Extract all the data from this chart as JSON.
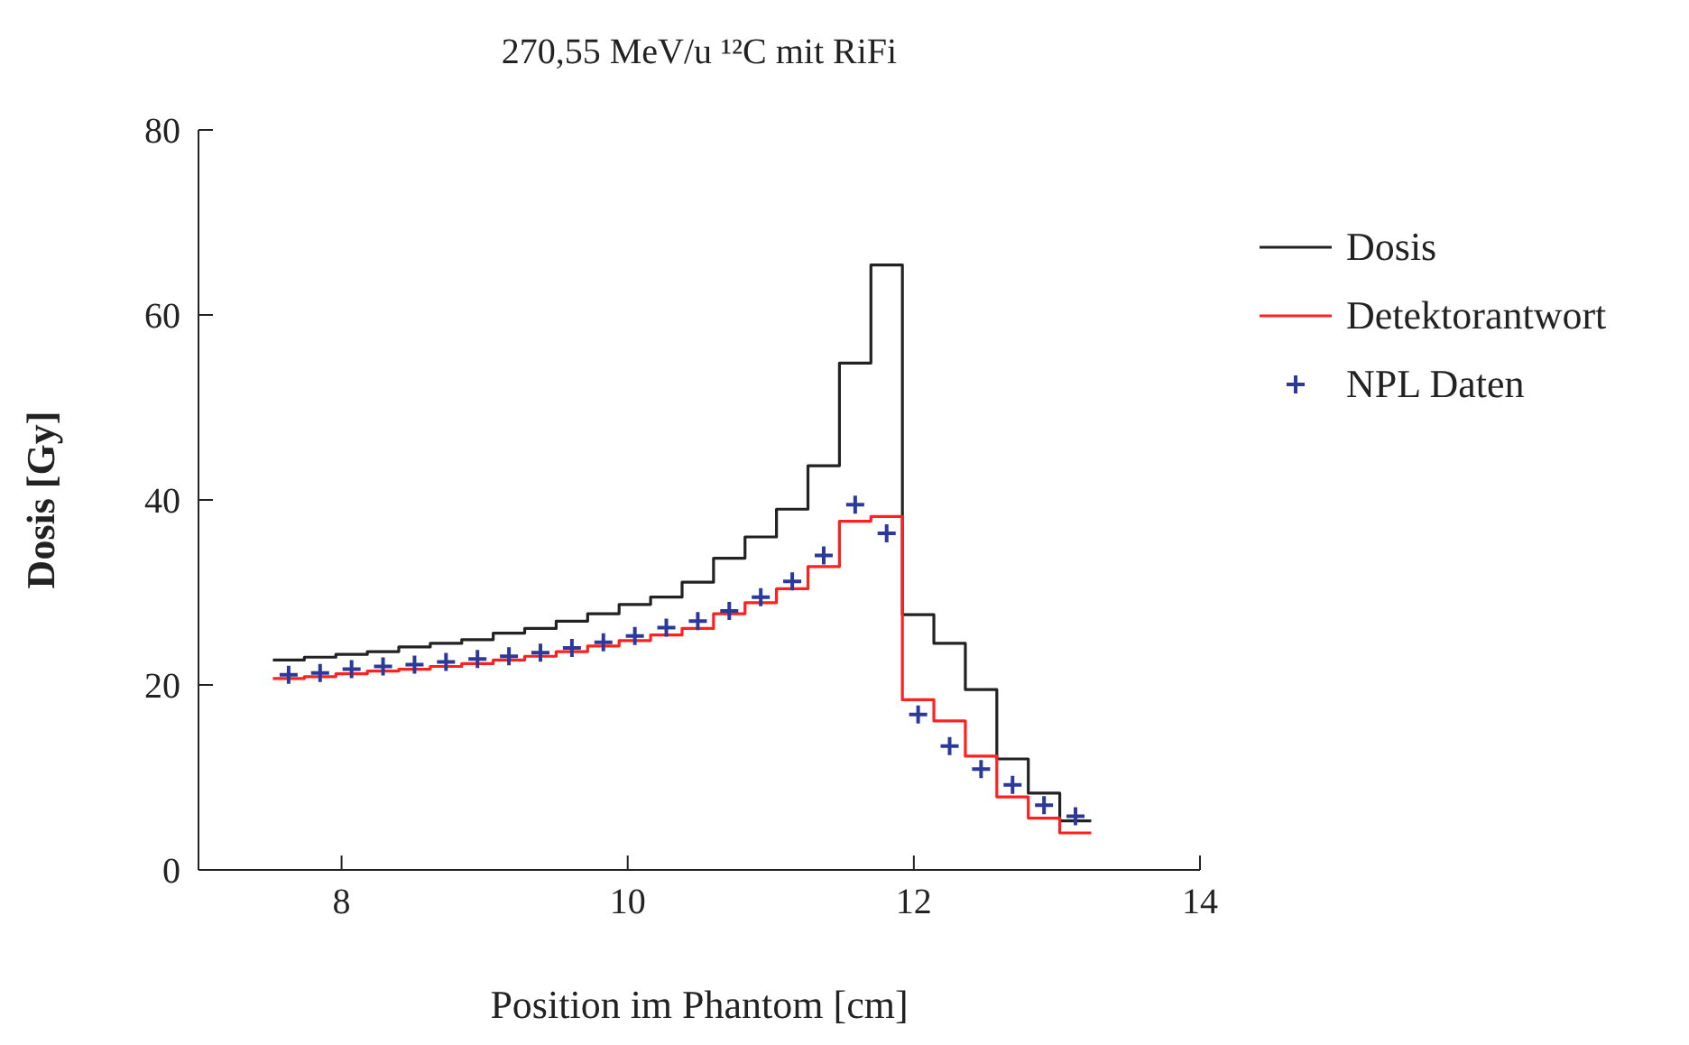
{
  "chart_data": {
    "type": "histogram",
    "title": "270,55 MeV/u ¹²C mit RiFi",
    "xlabel": "Position im Phantom [cm]",
    "ylabel": "Dosis [Gy]",
    "bins": [
      7.52,
      7.74,
      7.96,
      8.18,
      8.4,
      8.62,
      8.84,
      9.06,
      9.28,
      9.5,
      9.72,
      9.94,
      10.16,
      10.38,
      10.6,
      10.82,
      11.04,
      11.26,
      11.48,
      11.7,
      11.92,
      12.14,
      12.36,
      12.58,
      12.8,
      13.02,
      13.24
    ],
    "series": [
      {
        "name": "Dosis",
        "color": "#222222",
        "values": [
          22.7,
          23.0,
          23.3,
          23.6,
          24.1,
          24.5,
          24.9,
          25.6,
          26.1,
          26.9,
          27.7,
          28.7,
          29.5,
          31.1,
          33.7,
          36.0,
          39.0,
          43.7,
          54.8,
          65.4,
          27.6,
          24.5,
          19.5,
          12.0,
          8.3,
          5.3
        ]
      },
      {
        "name": "Detektorantwort",
        "color": "#ff2020",
        "values": [
          20.7,
          20.9,
          21.2,
          21.5,
          21.7,
          22.0,
          22.3,
          22.7,
          23.1,
          23.6,
          24.2,
          24.8,
          25.4,
          26.1,
          27.7,
          28.9,
          30.4,
          32.8,
          37.7,
          38.2,
          18.4,
          16.1,
          12.3,
          7.9,
          5.6,
          4.0
        ]
      },
      {
        "name": "NPL Daten",
        "type": "scatter",
        "color": "#2b3a9a",
        "x": [
          7.63,
          7.85,
          8.07,
          8.29,
          8.51,
          8.73,
          8.95,
          9.17,
          9.39,
          9.61,
          9.83,
          10.05,
          10.27,
          10.49,
          10.71,
          10.93,
          11.15,
          11.37,
          11.59,
          11.81,
          12.03,
          12.25,
          12.47,
          12.69,
          12.91,
          13.13
        ],
        "values": [
          21.1,
          21.3,
          21.7,
          22.0,
          22.2,
          22.5,
          22.8,
          23.1,
          23.5,
          24.0,
          24.6,
          25.3,
          26.2,
          26.9,
          28.0,
          29.5,
          31.2,
          34.0,
          39.5,
          36.4,
          16.8,
          13.4,
          10.9,
          9.2,
          7.0,
          5.8
        ]
      }
    ],
    "xlim": [
      7,
      14
    ],
    "xticks": [
      8,
      10,
      12,
      14
    ],
    "ylim": [
      0,
      80
    ],
    "yticks": [
      0,
      20,
      40,
      60,
      80
    ],
    "legend": "right",
    "marker": "cross"
  }
}
